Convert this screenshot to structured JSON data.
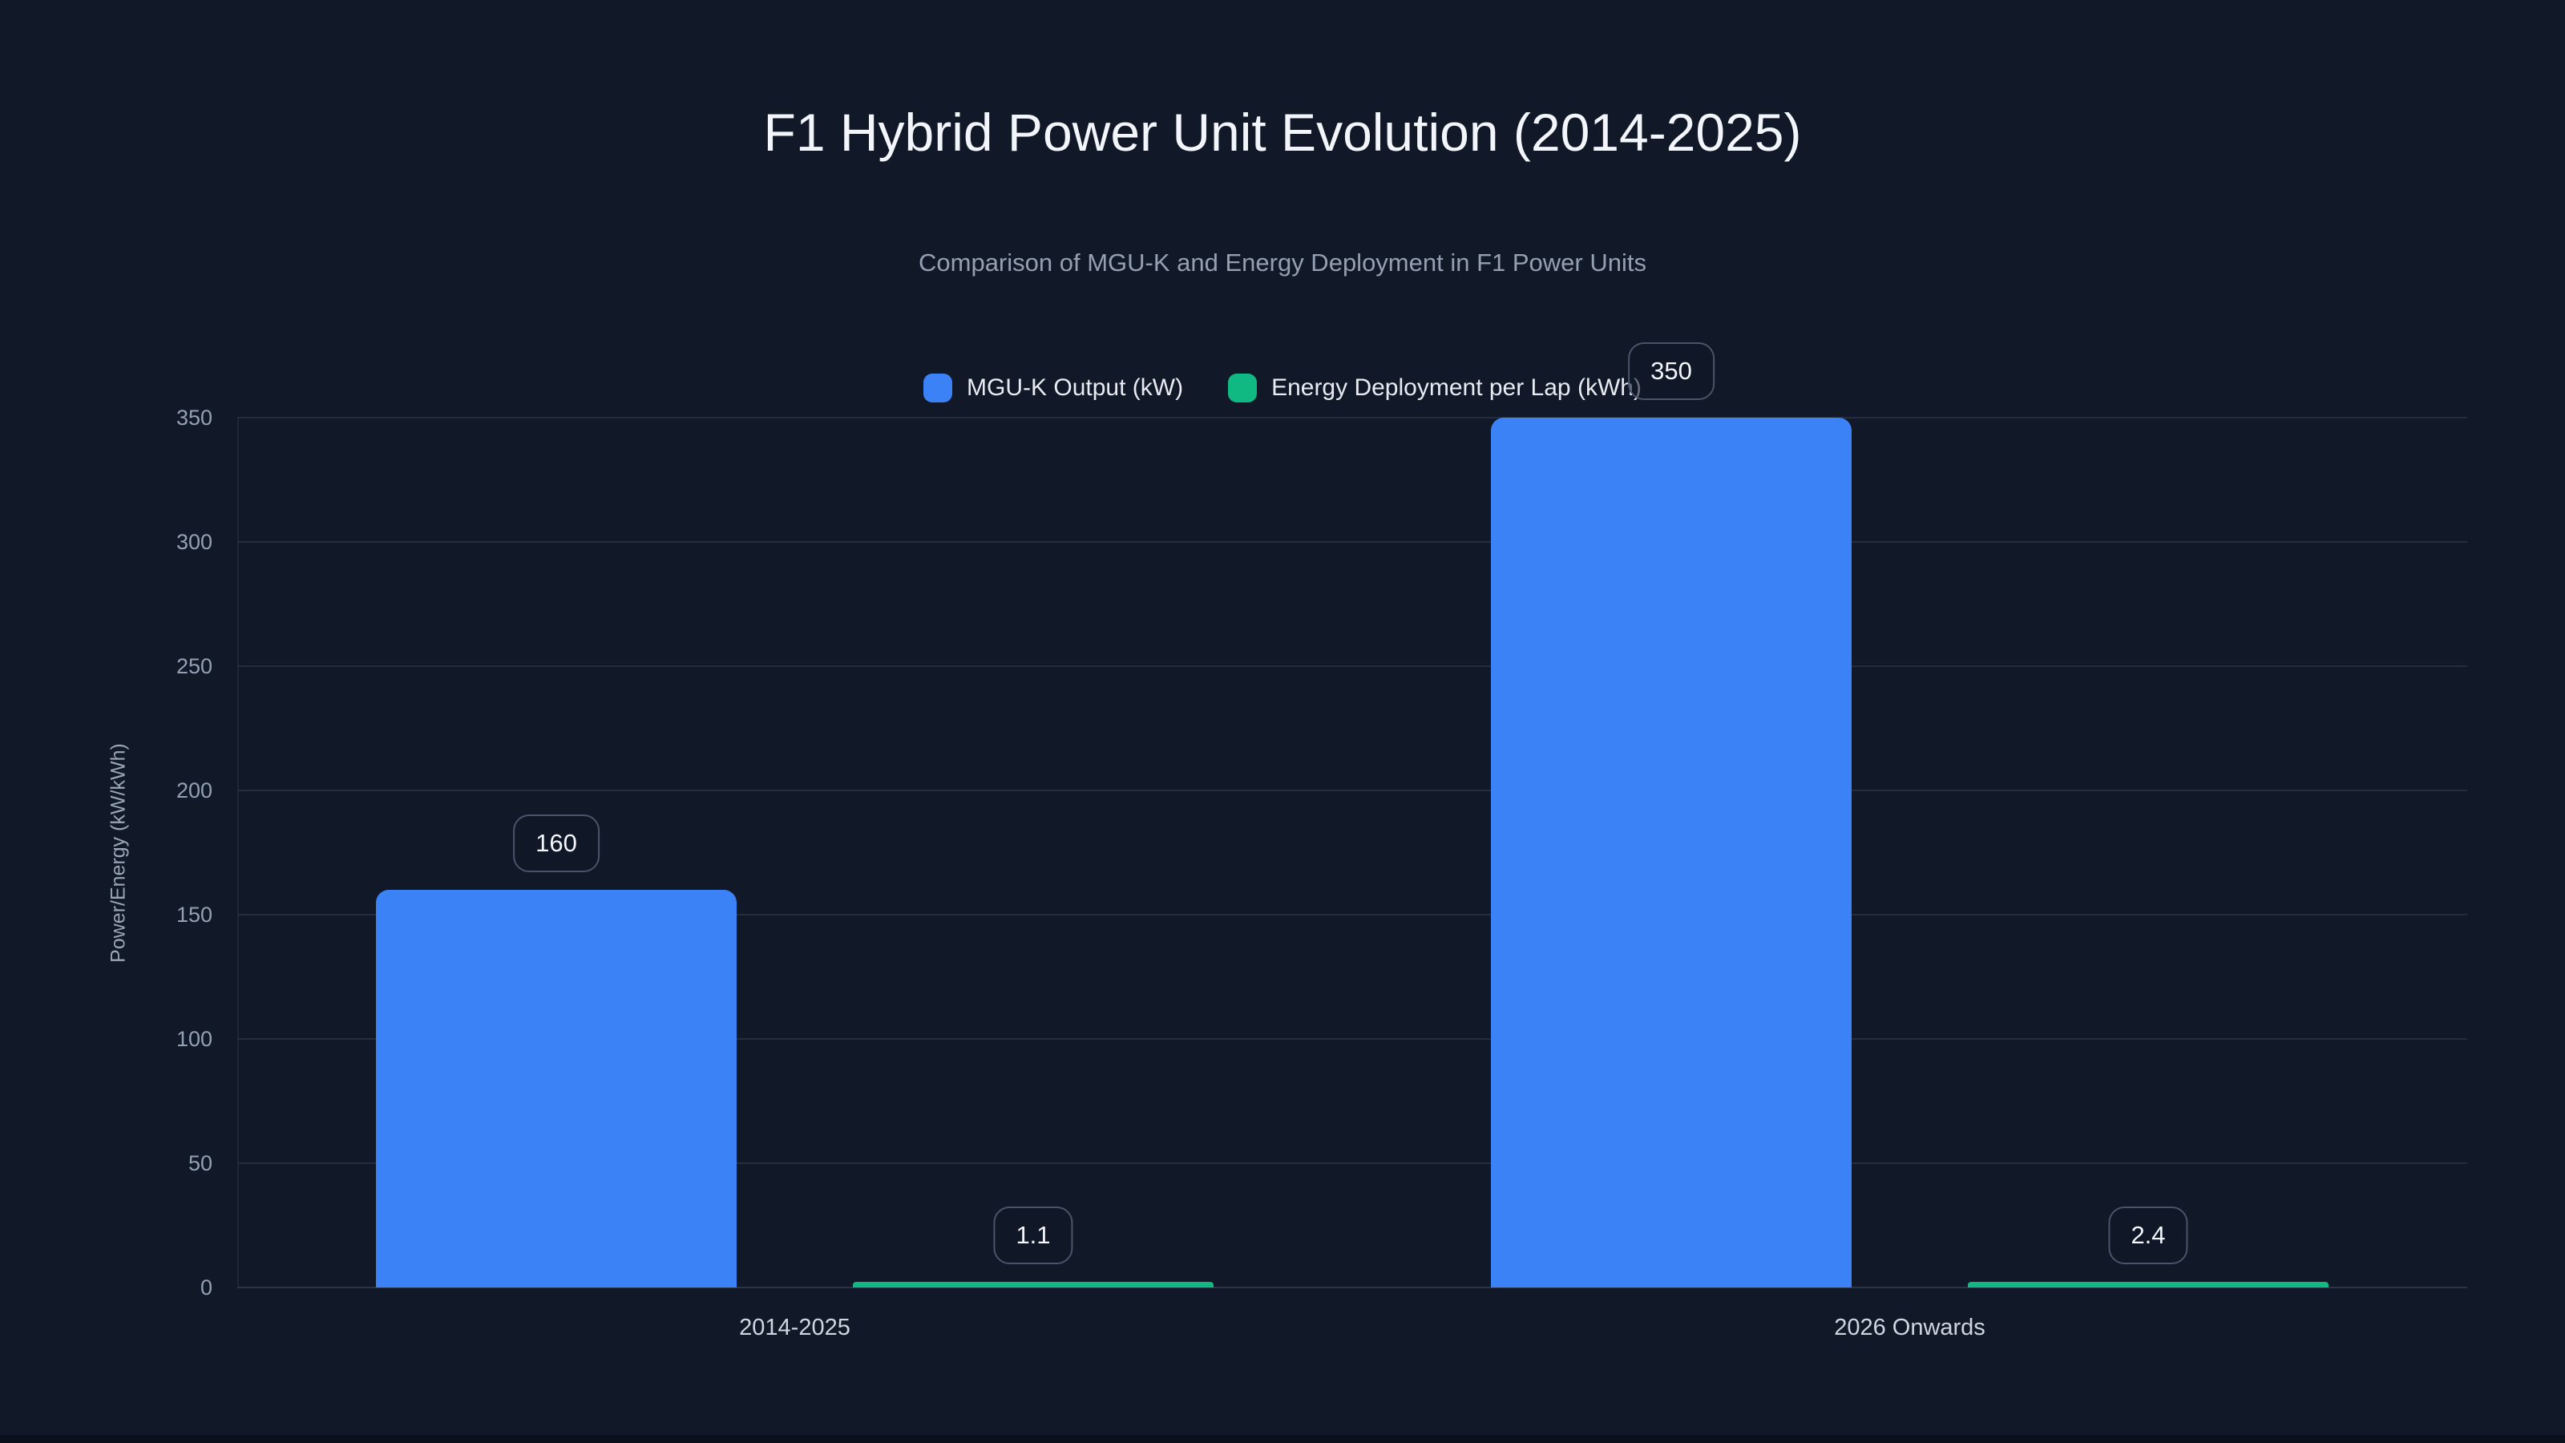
{
  "page": {
    "background": "#111827",
    "bottom_strip_color": "#0b101d"
  },
  "header": {
    "title": "F1 Hybrid Power Unit Evolution (2014-2025)",
    "subtitle": "Comparison of MGU-K and Energy Deployment in F1 Power Units"
  },
  "legend": {
    "items": [
      {
        "label": "MGU-K Output (kW)",
        "color": "#3b82f6"
      },
      {
        "label": "Energy Deployment per Lap (kWh)",
        "color": "#10b981"
      }
    ]
  },
  "chart_data": {
    "type": "bar",
    "title": "F1 Hybrid Power Unit Evolution (2014-2025)",
    "subtitle": "Comparison of MGU-K and Energy Deployment in F1 Power Units",
    "categories": [
      "2014-2025",
      "2026 Onwards"
    ],
    "series": [
      {
        "name": "MGU-K Output (kW)",
        "color": "#3b82f6",
        "values": [
          160,
          350
        ],
        "labels": [
          "160",
          "350"
        ]
      },
      {
        "name": "Energy Deployment per Lap (kWh)",
        "color": "#10b981",
        "values": [
          1.1,
          2.4
        ],
        "labels": [
          "1.1",
          "2.4"
        ]
      }
    ],
    "xlabel": "",
    "ylabel": "Power/Energy (kW/kWh)",
    "ylim": [
      0,
      350
    ],
    "yticks": [
      0,
      50,
      100,
      150,
      200,
      250,
      300,
      350
    ],
    "grid": true,
    "legend_position": "top",
    "colors": {
      "background": "#111827",
      "gridline": "#232d3f",
      "tick_text": "#93a1b4",
      "title_text": "#f2f5f9",
      "subtitle_text": "#94a0b2"
    }
  }
}
